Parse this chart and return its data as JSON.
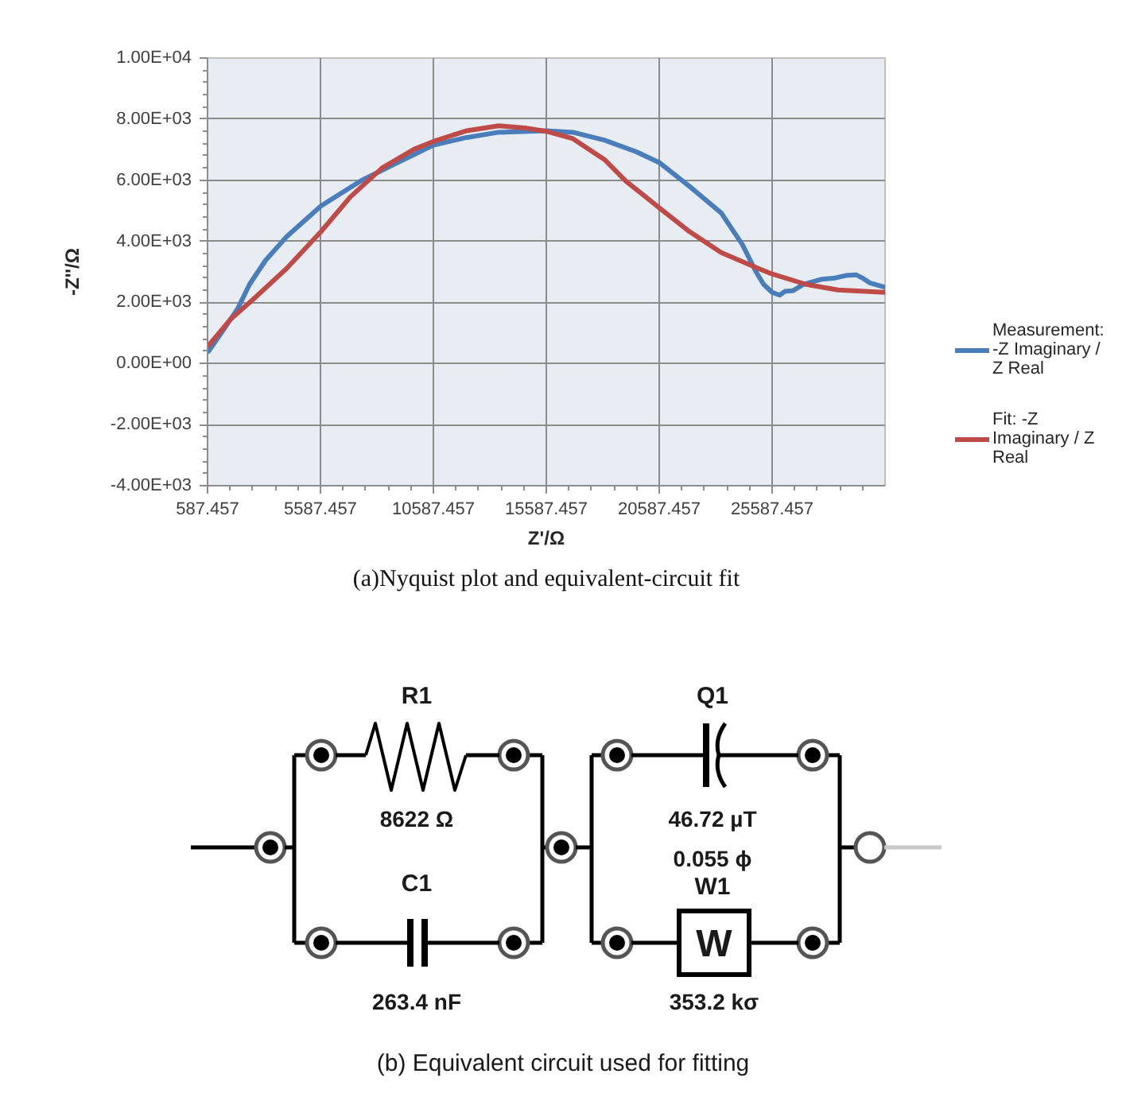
{
  "chart_data": [
    {
      "type": "line",
      "xlabel": "Z'/Ω",
      "ylabel": "-Z''/Ω",
      "annotations": [
        "(a)Nyquist plot and equivalent-circuit fit"
      ],
      "xlim": [
        587.457,
        30587.457
      ],
      "xticks": [
        587.457,
        5587.457,
        10587.457,
        15587.457,
        20587.457,
        25587.457
      ],
      "ylim": [
        -4000,
        10000
      ],
      "yticks": [
        {
          "value": -4000,
          "label": "-4.00E+03"
        },
        {
          "value": -2000,
          "label": "-2.00E+03"
        },
        {
          "value": 0,
          "label": "0.00E+00"
        },
        {
          "value": 2000,
          "label": "2.00E+03"
        },
        {
          "value": 4000,
          "label": "4.00E+03"
        },
        {
          "value": 6000,
          "label": "6.00E+03"
        },
        {
          "value": 8000,
          "label": "8.00E+03"
        },
        {
          "value": 10000,
          "label": "1.00E+04"
        }
      ],
      "grid": true,
      "legend": "right",
      "series": [
        {
          "name": "Measurement: -Z Imaginary / Z Real",
          "color": "#4a7ebb",
          "x": [
            637,
            1270,
            1926,
            2446,
            3150,
            4088,
            5615,
            7375,
            8785,
            10587,
            12066,
            13475,
            15587,
            16765,
            18173,
            19580,
            20587,
            21925,
            23333,
            24275,
            24860,
            25210,
            25587,
            25920,
            26150,
            26500,
            26975,
            27800,
            28380,
            28850,
            29320,
            29560,
            29910,
            30560
          ],
          "values": [
            400,
            1080,
            1800,
            2590,
            3370,
            4150,
            5160,
            5980,
            6500,
            7150,
            7400,
            7570,
            7620,
            7570,
            7310,
            6930,
            6580,
            5800,
            4930,
            3890,
            3020,
            2590,
            2330,
            2240,
            2360,
            2380,
            2590,
            2760,
            2800,
            2880,
            2900,
            2810,
            2640,
            2500
          ]
        },
        {
          "name": "Fit: -Z Imaginary / Z Real",
          "color": "#be4b48",
          "x": [
            637,
            1622,
            2678,
            4088,
            5615,
            6905,
            8315,
            9725,
            10587,
            12066,
            13475,
            14650,
            15587,
            16765,
            18173,
            19112,
            20587,
            21925,
            23333,
            24980,
            25587,
            27093,
            28500,
            30560
          ],
          "values": [
            590,
            1460,
            2150,
            3110,
            4320,
            5450,
            6400,
            7010,
            7270,
            7620,
            7780,
            7710,
            7600,
            7360,
            6670,
            5970,
            5100,
            4320,
            3630,
            3110,
            2930,
            2590,
            2410,
            2330
          ]
        }
      ]
    },
    {
      "type": "other",
      "annotations": [
        "R1",
        "8622 Ω",
        "C1",
        "263.4 nF",
        "Q1",
        "46.72 µT",
        "0.055 ϕ",
        "W1",
        "W",
        "353.2 kσ",
        "(b) Equivalent circuit used for fitting"
      ]
    }
  ]
}
